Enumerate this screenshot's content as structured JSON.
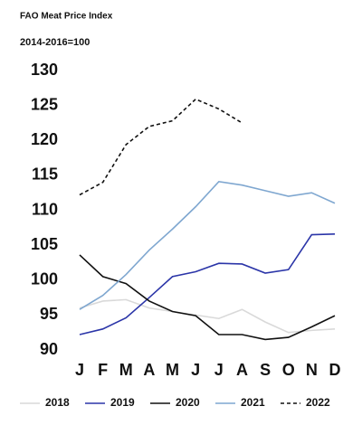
{
  "chart_data": {
    "type": "line",
    "title": "FAO Meat Price Index",
    "subtitle": "2014-2016=100",
    "categories": [
      "J",
      "F",
      "M",
      "A",
      "M",
      "J",
      "J",
      "A",
      "S",
      "O",
      "N",
      "D"
    ],
    "ylim": [
      90,
      130
    ],
    "yticks": [
      90,
      95,
      100,
      105,
      110,
      115,
      120,
      125,
      130
    ],
    "grid": false,
    "legend": "bottom",
    "series": [
      {
        "name": "2018",
        "color": "#d9d9d9",
        "style": "solid",
        "values": [
          96,
          97,
          97.2,
          96,
          95.5,
          95,
          94.5,
          95.8,
          94,
          92.5,
          92.8,
          93
        ]
      },
      {
        "name": "2019",
        "color": "#2b35a8",
        "style": "solid",
        "values": [
          92.2,
          93,
          94.6,
          97.5,
          100.5,
          101.2,
          102.4,
          102.3,
          101,
          101.5,
          106.5,
          106.6
        ]
      },
      {
        "name": "2020",
        "color": "#111111",
        "style": "solid",
        "values": [
          103.6,
          100.5,
          99.5,
          97,
          95.5,
          94.9,
          92.2,
          92.2,
          91.5,
          91.8,
          93.3,
          94.9
        ]
      },
      {
        "name": "2021",
        "color": "#7fa7d0",
        "style": "solid",
        "values": [
          95.8,
          97.8,
          100.8,
          104.3,
          107.3,
          110.5,
          114.1,
          113.6,
          112.8,
          112,
          112.5,
          111
        ]
      },
      {
        "name": "2022",
        "color": "#111111",
        "style": "dashed",
        "values": [
          112.2,
          114,
          119.4,
          122,
          122.8,
          125.9,
          124.5,
          122.5,
          null,
          null,
          null,
          null
        ]
      }
    ]
  }
}
